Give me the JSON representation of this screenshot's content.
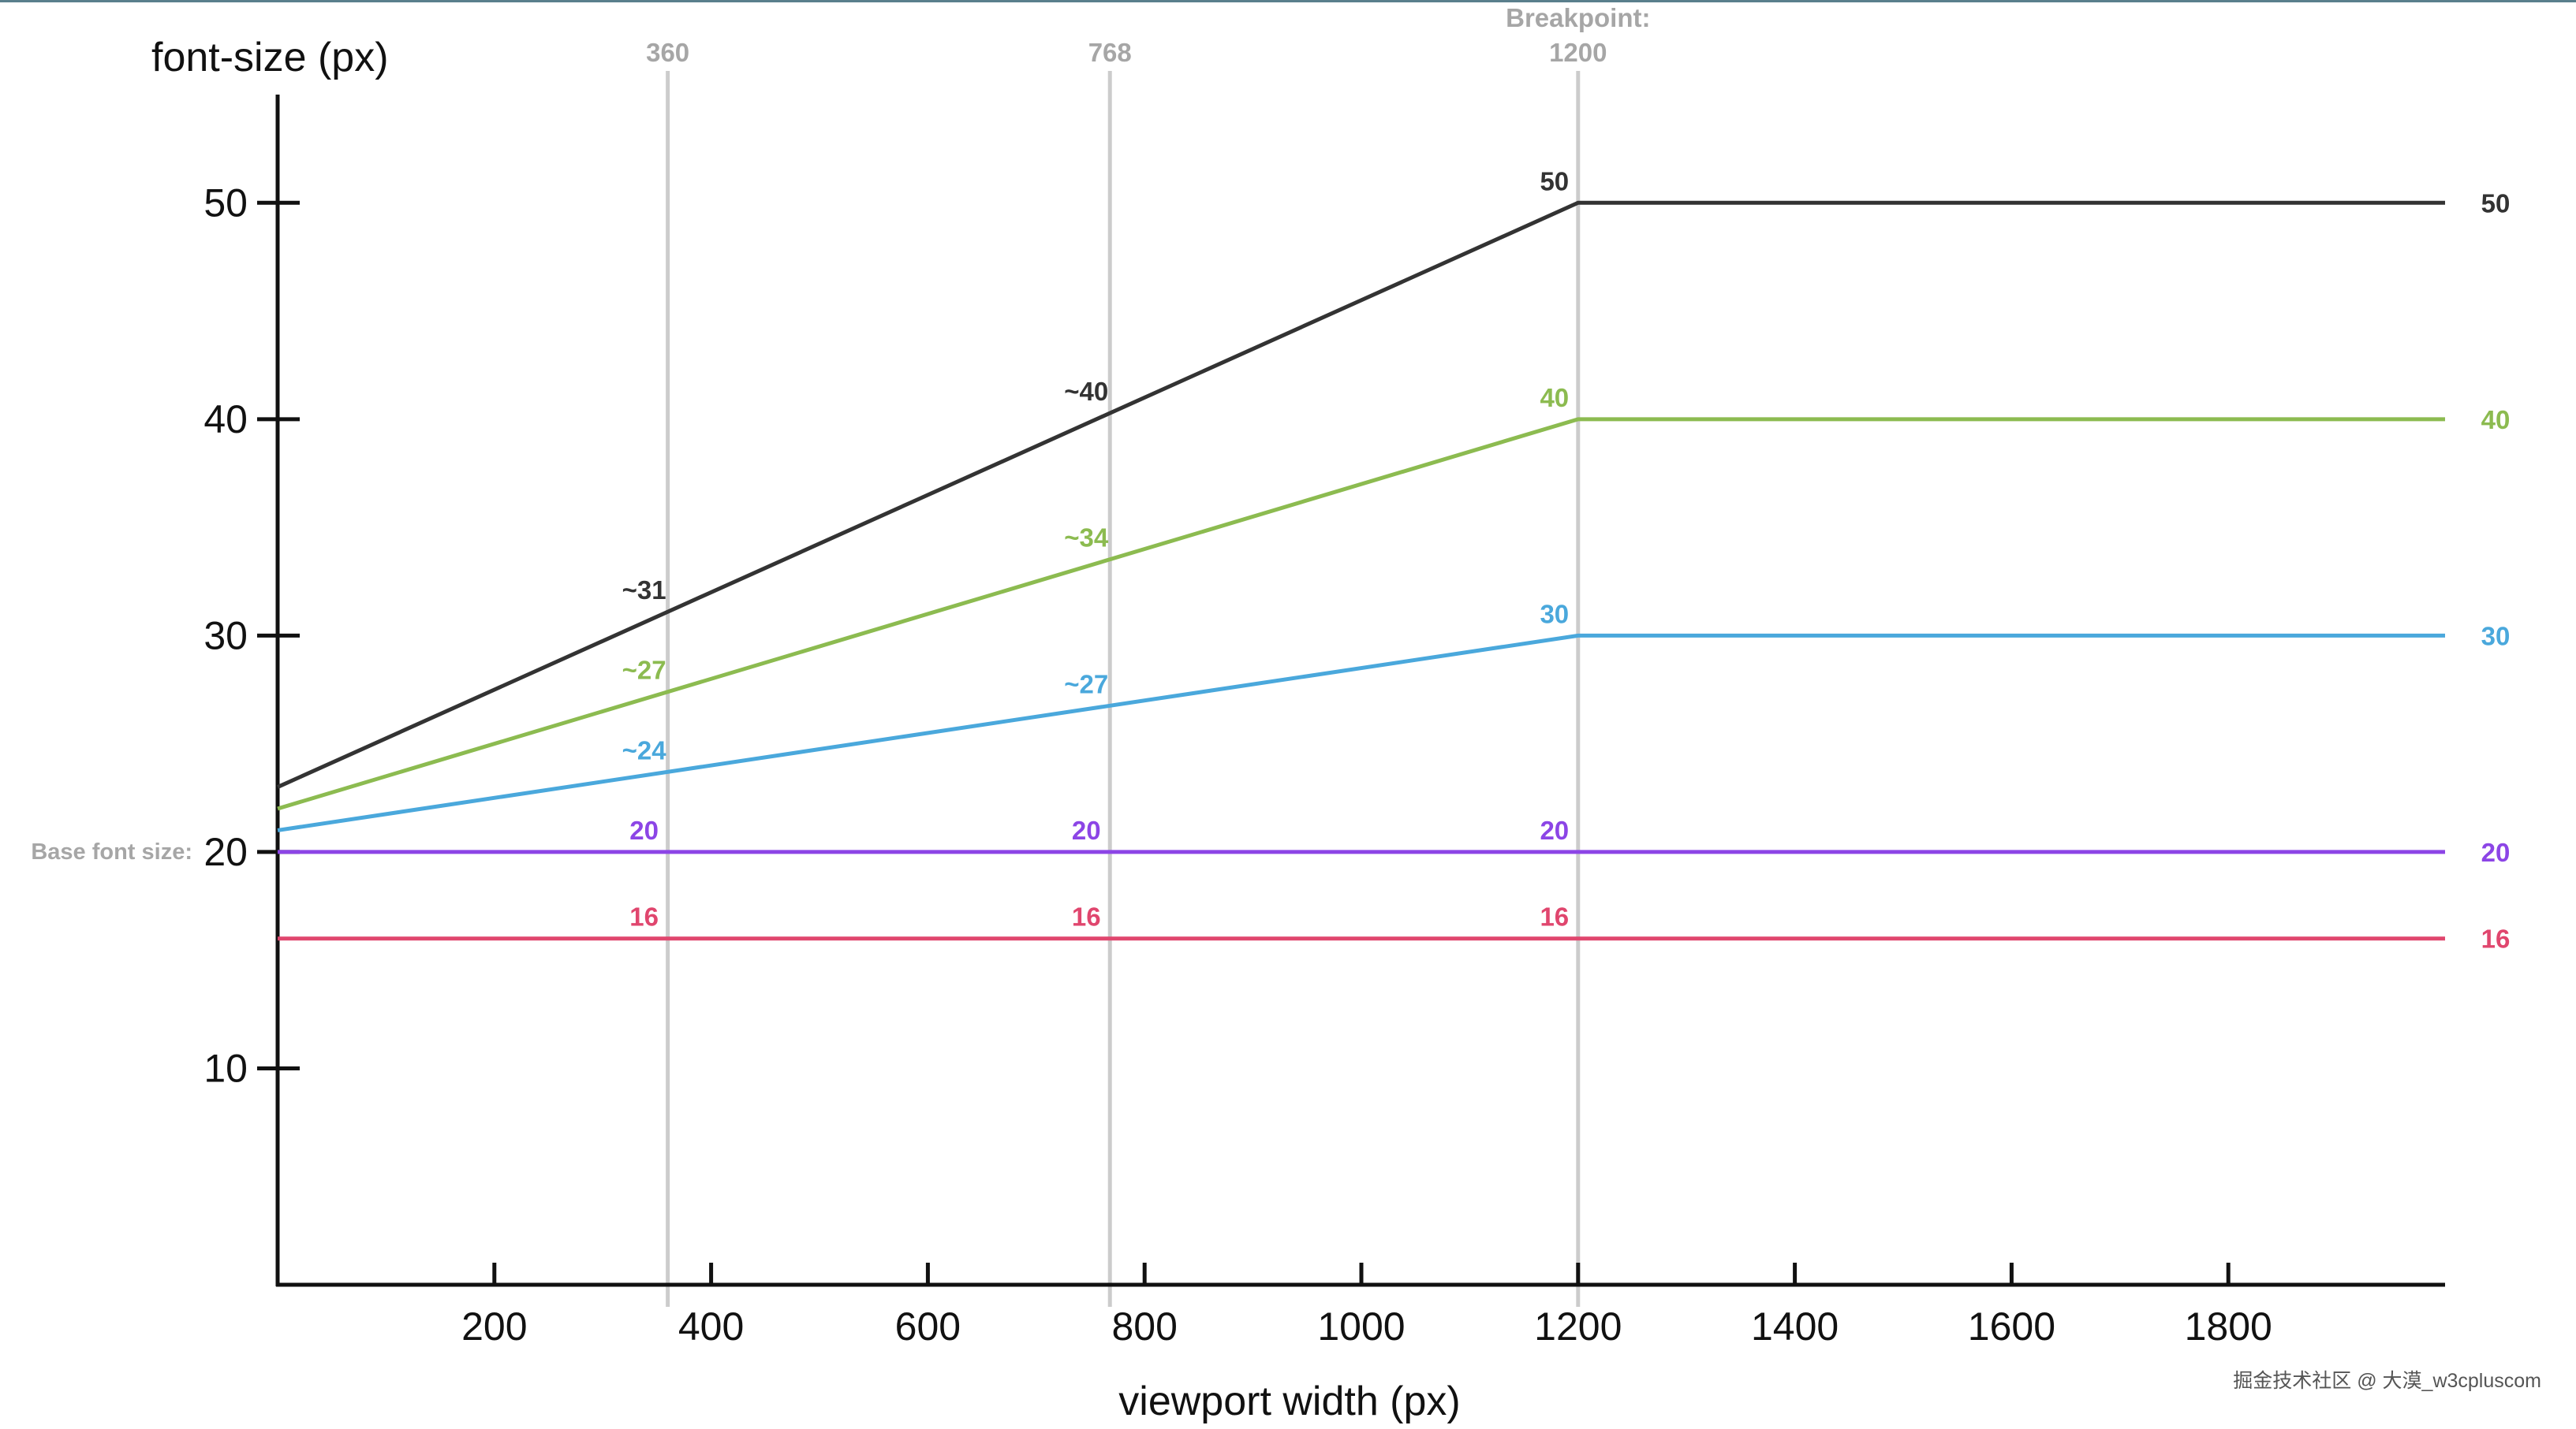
{
  "chart_data": {
    "type": "line",
    "xlabel": "viewport width (px)",
    "ylabel": "font-size (px)",
    "xlim": [
      0,
      2000
    ],
    "ylim": [
      0,
      55
    ],
    "x_ticks": [
      200,
      400,
      600,
      800,
      1000,
      1200,
      1400,
      1600,
      1800
    ],
    "y_ticks": [
      10,
      20,
      30,
      40,
      50
    ],
    "grid": false,
    "legend": "none",
    "reference_lines": [
      {
        "x": 360,
        "label_lines": [
          "360"
        ],
        "color": "#cccccc"
      },
      {
        "x": 768,
        "label_lines": [
          "768"
        ],
        "color": "#cccccc"
      },
      {
        "x": 1200,
        "label_lines": [
          "Breakpoint:",
          "1200"
        ],
        "color": "#cccccc"
      }
    ],
    "base_font_size": {
      "label": "Base font size:",
      "value": 20
    },
    "series": [
      {
        "color": "#333333",
        "x": [
          0,
          1200,
          2000
        ],
        "y": [
          23,
          50,
          50
        ],
        "annotations": [
          {
            "x": 360,
            "text": "~31"
          },
          {
            "x": 768,
            "text": "~40"
          },
          {
            "x": 1200,
            "text": "50"
          }
        ],
        "end_label": "50"
      },
      {
        "color": "#8cbb50",
        "x": [
          0,
          1200,
          2000
        ],
        "y": [
          22,
          40,
          40
        ],
        "annotations": [
          {
            "x": 360,
            "text": "~27"
          },
          {
            "x": 768,
            "text": "~34"
          },
          {
            "x": 1200,
            "text": "40"
          }
        ],
        "end_label": "40"
      },
      {
        "color": "#4aa8dc",
        "x": [
          0,
          1200,
          2000
        ],
        "y": [
          21,
          30,
          30
        ],
        "annotations": [
          {
            "x": 360,
            "text": "~24"
          },
          {
            "x": 768,
            "text": "~27"
          },
          {
            "x": 1200,
            "text": "30"
          }
        ],
        "end_label": "30"
      },
      {
        "color": "#8c45e6",
        "x": [
          0,
          1200,
          2000
        ],
        "y": [
          20,
          20,
          20
        ],
        "annotations": [
          {
            "x": 360,
            "text": "20"
          },
          {
            "x": 768,
            "text": "20"
          },
          {
            "x": 1200,
            "text": "20"
          }
        ],
        "end_label": "20"
      },
      {
        "color": "#e0466e",
        "x": [
          0,
          1200,
          2000
        ],
        "y": [
          16,
          16,
          16
        ],
        "annotations": [
          {
            "x": 360,
            "text": "16"
          },
          {
            "x": 768,
            "text": "16"
          },
          {
            "x": 1200,
            "text": "16"
          }
        ],
        "end_label": "16"
      }
    ]
  },
  "watermark": "掘金技术社区 @ 大漠_w3cpluscom",
  "colors": {
    "axis": "#111111",
    "reference_line": "#cccccc",
    "reference_label": "#a6a6a6",
    "top_border": "#5a7f8c"
  }
}
